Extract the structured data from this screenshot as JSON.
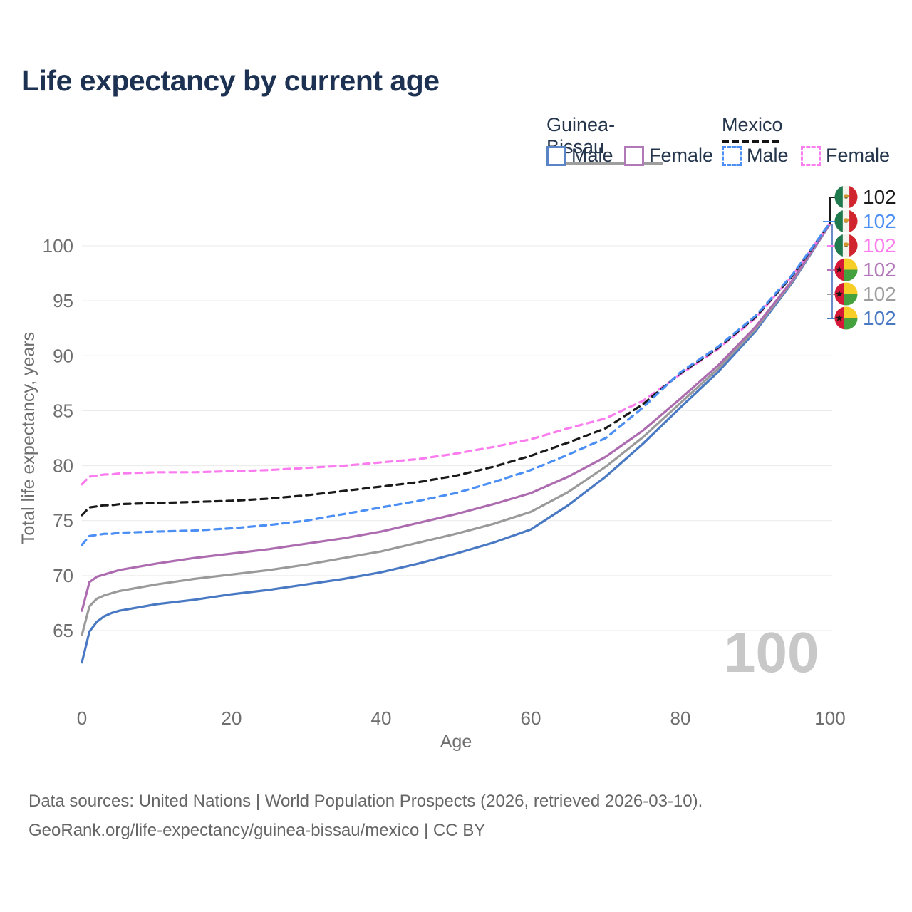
{
  "title": "Life expectancy by current age",
  "legend": {
    "groups": [
      {
        "label": "Guinea-Bissau",
        "line_style": "solid",
        "underline_color": "#9e9e9e",
        "items": [
          {
            "label": "Male",
            "color": "#4a79c4"
          },
          {
            "label": "Female",
            "color": "#ad6cb0"
          }
        ]
      },
      {
        "label": "Mexico",
        "line_style": "dashed",
        "underline_color": "#141414",
        "items": [
          {
            "label": "Male",
            "color": "#4b8ff5"
          },
          {
            "label": "Female",
            "color": "#fb7cee"
          }
        ]
      }
    ]
  },
  "chart_data": {
    "type": "line",
    "title": "Life expectancy by current age",
    "xlabel": "Age",
    "ylabel": "Total life expectancy, years",
    "xlim": [
      0,
      100
    ],
    "ylim": [
      62,
      103
    ],
    "x_ticks": [
      0,
      20,
      40,
      60,
      80,
      100
    ],
    "y_ticks": [
      65,
      70,
      75,
      80,
      85,
      90,
      95,
      100
    ],
    "grid": "horizontal",
    "legend_position": "top-right",
    "x": [
      0,
      1,
      2,
      3,
      4,
      5,
      10,
      15,
      20,
      25,
      30,
      35,
      40,
      45,
      50,
      55,
      60,
      65,
      70,
      75,
      80,
      85,
      90,
      95,
      100
    ],
    "series": [
      {
        "id": "guinea-bissau-male",
        "name": "Guinea-Bissau Male",
        "color": "#4a79c4",
        "dash": false,
        "values": [
          62.1,
          64.9,
          65.8,
          66.3,
          66.6,
          66.8,
          67.4,
          67.8,
          68.3,
          68.7,
          69.2,
          69.7,
          70.3,
          71.1,
          72.0,
          73.0,
          74.2,
          76.4,
          79.0,
          82.0,
          85.3,
          88.5,
          92.2,
          96.7,
          102.0
        ]
      },
      {
        "id": "guinea-bissau-total",
        "name": "Guinea-Bissau Total",
        "color": "#9a9a9a",
        "dash": false,
        "values": [
          64.6,
          67.2,
          67.9,
          68.2,
          68.4,
          68.6,
          69.2,
          69.7,
          70.1,
          70.5,
          71.0,
          71.6,
          72.2,
          73.0,
          73.8,
          74.7,
          75.8,
          77.6,
          79.9,
          82.6,
          85.7,
          88.8,
          92.4,
          96.8,
          102.0
        ]
      },
      {
        "id": "guinea-bissau-female",
        "name": "Guinea-Bissau Female",
        "color": "#ad6cb0",
        "dash": false,
        "values": [
          66.8,
          69.4,
          69.9,
          70.1,
          70.3,
          70.5,
          71.1,
          71.6,
          72.0,
          72.4,
          72.9,
          73.4,
          74.0,
          74.8,
          75.6,
          76.5,
          77.5,
          79.0,
          80.8,
          83.2,
          86.1,
          89.1,
          92.6,
          96.9,
          102.0
        ]
      },
      {
        "id": "mexico-female",
        "name": "Mexico Female",
        "color": "#fb7cee",
        "dash": true,
        "values": [
          78.3,
          79.0,
          79.1,
          79.2,
          79.2,
          79.3,
          79.4,
          79.4,
          79.5,
          79.6,
          79.8,
          80.0,
          80.3,
          80.6,
          81.1,
          81.7,
          82.4,
          83.4,
          84.3,
          85.9,
          88.3,
          90.6,
          93.4,
          97.3,
          102.1
        ]
      },
      {
        "id": "mexico-total",
        "name": "Mexico Total",
        "color": "#1a1a1a",
        "dash": true,
        "values": [
          75.5,
          76.2,
          76.3,
          76.4,
          76.4,
          76.5,
          76.6,
          76.7,
          76.8,
          77.0,
          77.3,
          77.7,
          78.1,
          78.5,
          79.1,
          79.9,
          80.9,
          82.1,
          83.4,
          85.6,
          88.4,
          90.7,
          93.5,
          97.3,
          102.1
        ]
      },
      {
        "id": "mexico-male",
        "name": "Mexico Male",
        "color": "#4b8ff5",
        "dash": true,
        "values": [
          72.8,
          73.6,
          73.7,
          73.8,
          73.8,
          73.9,
          74.0,
          74.1,
          74.3,
          74.6,
          75.0,
          75.6,
          76.2,
          76.8,
          77.5,
          78.5,
          79.6,
          81.0,
          82.5,
          85.3,
          88.5,
          90.8,
          93.6,
          97.4,
          102.1
        ]
      }
    ]
  },
  "end_labels": [
    {
      "flag": "mexico",
      "series": "mexico-total",
      "value": "102",
      "color": "#1a1a1a"
    },
    {
      "flag": "mexico",
      "series": "mexico-male",
      "value": "102",
      "color": "#4b8ff5"
    },
    {
      "flag": "mexico",
      "series": "mexico-female",
      "value": "102",
      "color": "#fb7cee"
    },
    {
      "flag": "guinea-bissau",
      "series": "guinea-bissau-female",
      "value": "102",
      "color": "#b277b8"
    },
    {
      "flag": "guinea-bissau",
      "series": "guinea-bissau-total",
      "value": "102",
      "color": "#9e9e9e"
    },
    {
      "flag": "guinea-bissau",
      "series": "guinea-bissau-male",
      "value": "102",
      "color": "#4a79c4"
    }
  ],
  "watermark": "100",
  "footer": {
    "line1": "Data sources: United Nations | World Population Prospects (2026, retrieved 2026-03-10).",
    "line2": "GeoRank.org/life-expectancy/guinea-bissau/mexico | CC BY"
  }
}
